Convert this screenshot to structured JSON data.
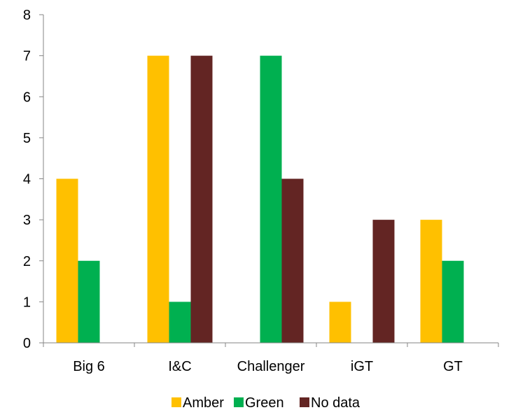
{
  "chart_data": {
    "type": "bar",
    "categories": [
      "Big 6",
      "I&C",
      "Challenger",
      "iGT",
      "GT"
    ],
    "series": [
      {
        "name": "Amber",
        "color": "#FFC000",
        "values": [
          4,
          7,
          0,
          1,
          3
        ]
      },
      {
        "name": "Green",
        "color": "#00B050",
        "values": [
          2,
          1,
          7,
          0,
          2
        ]
      },
      {
        "name": "No data",
        "color": "#632523",
        "values": [
          0,
          7,
          4,
          3,
          0
        ]
      }
    ],
    "ylim": [
      0,
      8
    ],
    "yticks": [
      0,
      1,
      2,
      3,
      4,
      5,
      6,
      7,
      8
    ],
    "grid": false,
    "legend": "bottom"
  }
}
